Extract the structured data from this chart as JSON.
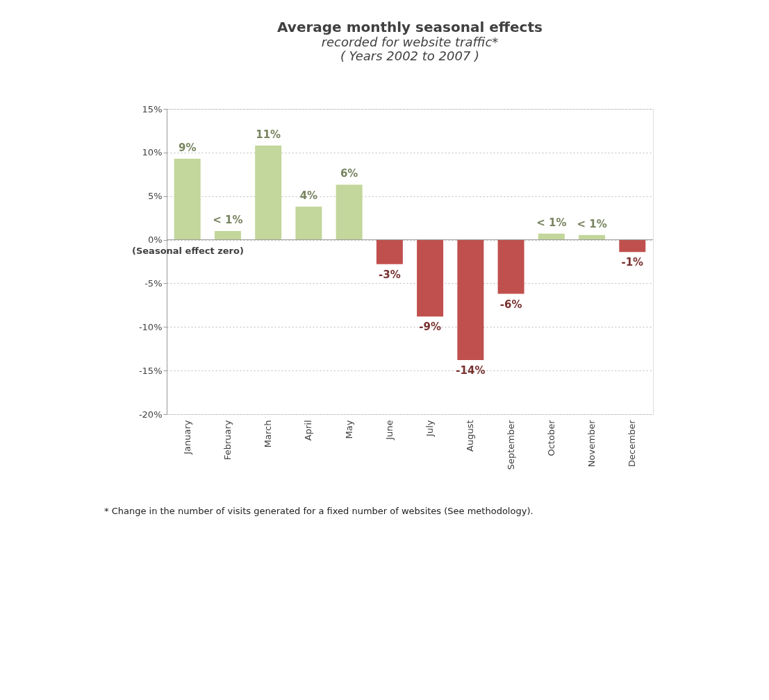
{
  "chart_data": {
    "type": "bar",
    "title": "Average monthly seasonal effects",
    "subtitle": "recorded for website traffic*\n( Years 2002 to 2007 )",
    "categories": [
      "January",
      "February",
      "March",
      "April",
      "May",
      "June",
      "July",
      "August",
      "September",
      "October",
      "November",
      "December"
    ],
    "values": [
      9.3,
      1.0,
      10.8,
      3.8,
      6.3,
      -2.8,
      -8.8,
      -13.8,
      -6.2,
      0.7,
      0.55,
      -1.4
    ],
    "colors": [
      "#c3d69b",
      "#c3d69b",
      "#c3d69b",
      "#c3d69b",
      "#c3d69b",
      "#c0504d",
      "#c0504d",
      "#c0504d",
      "#c0504d",
      "#c3d69b",
      "#c3d69b",
      "#c0504d"
    ],
    "value_labels": [
      "9%",
      "< 1%",
      "11%",
      "4%",
      "6%",
      "-3%",
      "-9%",
      "-14%",
      "-6%",
      "< 1%",
      "< 1%",
      "-1%"
    ],
    "ylim": [
      -20,
      15
    ],
    "yticks": [
      {
        "value": -20,
        "label": "-20%"
      },
      {
        "value": -15,
        "label": "-15%"
      },
      {
        "value": -10,
        "label": "-10%"
      },
      {
        "value": -5,
        "label": "-5%"
      },
      {
        "value": 0,
        "label": "0%"
      },
      {
        "value": 5,
        "label": "5%"
      },
      {
        "value": 10,
        "label": "10%"
      },
      {
        "value": 15,
        "label": "15%"
      }
    ],
    "grid": "y",
    "annotations": [
      {
        "text": "(Seasonal effect zero)",
        "y": 0
      },
      "* Change in the number of visits generated for a fixed number of websites (See methodology)."
    ]
  }
}
